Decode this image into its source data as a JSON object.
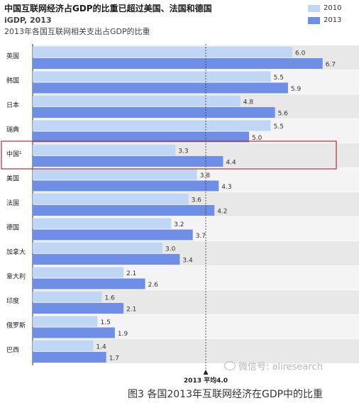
{
  "title": "中国互联网经济占GDP的比重已超过美国、法国和德国",
  "source": "iGDP, 2013",
  "subtitle": "2013年各国互联网相关支出占GDP的比重",
  "caption": "图3 各国2013年互联网经济在GDP中的比重",
  "watermark": "微信号: aliresearch",
  "colors": {
    "series_2010": "#bfd7f5",
    "series_2013": "#6f8fe6",
    "highlight": "#c0282e",
    "band": "#e8e8e8"
  },
  "chart_data": {
    "type": "bar",
    "orientation": "horizontal",
    "categories": [
      "英国",
      "韩国",
      "日本",
      "瑞典",
      "中国¹",
      "美国",
      "法国",
      "德国",
      "加拿大",
      "意大利",
      "印度",
      "俄罗斯",
      "巴西"
    ],
    "series": [
      {
        "name": "2010",
        "values": [
          6.0,
          5.5,
          4.8,
          5.5,
          3.3,
          3.8,
          3.6,
          3.2,
          3.0,
          2.1,
          1.6,
          1.5,
          1.4
        ]
      },
      {
        "name": "2013",
        "values": [
          6.7,
          5.9,
          5.6,
          5.0,
          4.4,
          4.3,
          4.2,
          3.7,
          3.4,
          2.6,
          2.1,
          1.9,
          1.7
        ]
      }
    ],
    "xlim": [
      0,
      7.2
    ],
    "highlight_category": "中国¹",
    "reference_line": {
      "value": 4.0,
      "label": "2013 平均4.0"
    },
    "legend_position": "top-right"
  }
}
